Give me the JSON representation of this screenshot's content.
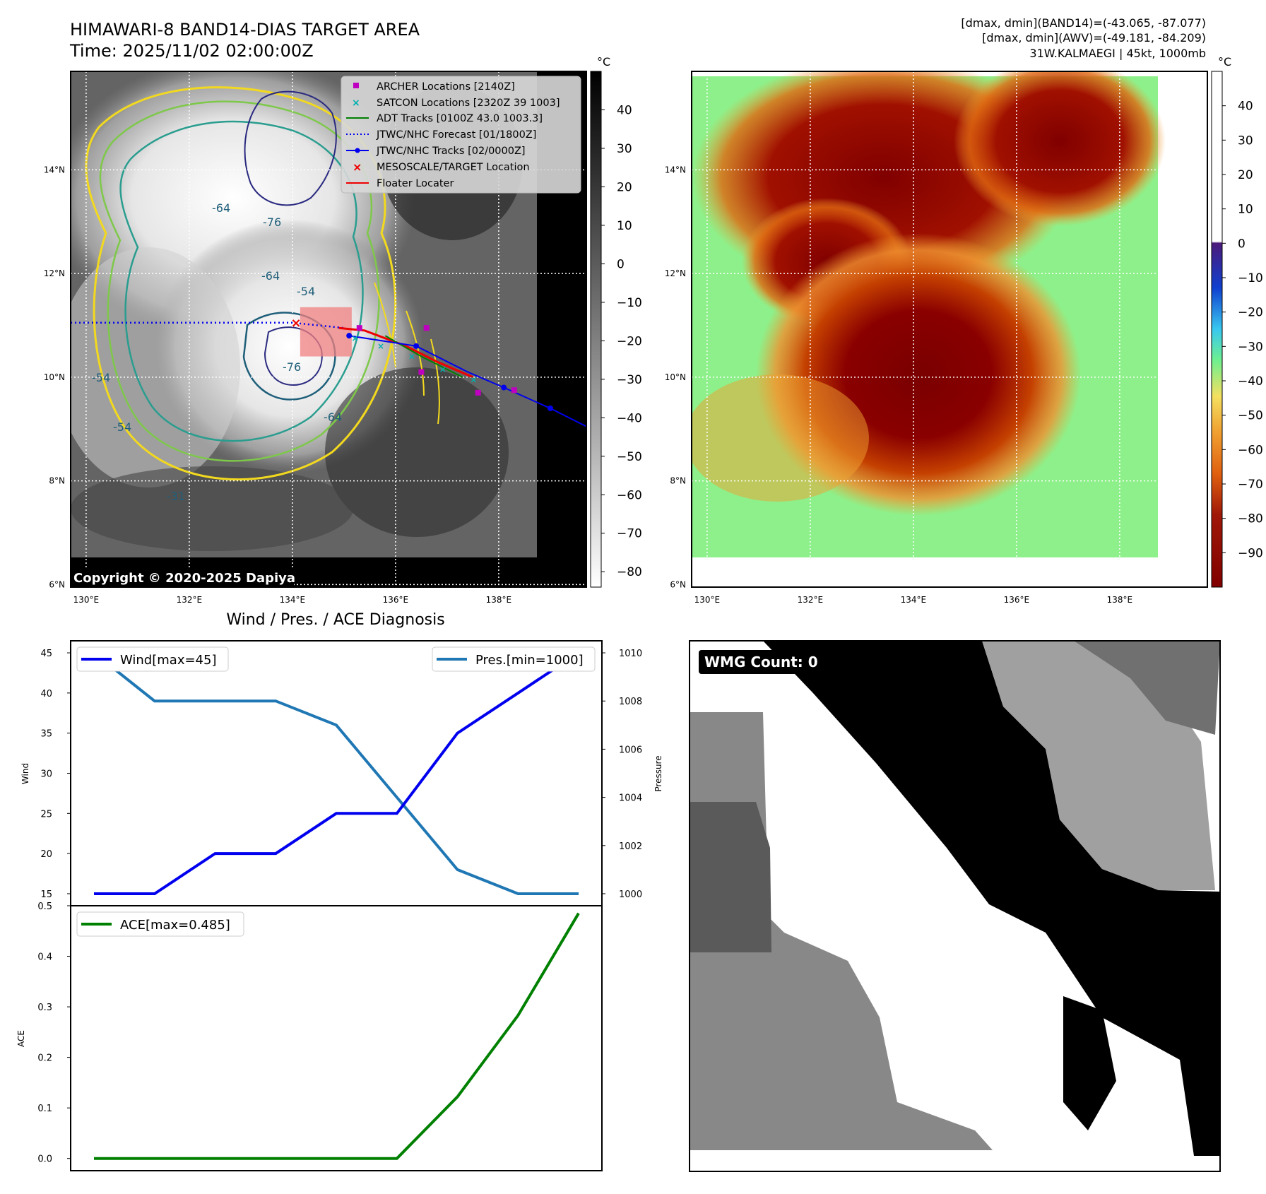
{
  "header": {
    "title_line1": "HIMAWARI-8 BAND14-DIAS TARGET AREA",
    "title_line2": "Time: 2025/11/02 02:00:00Z",
    "info_line1": "[dmax, dmin](BAND14)=(-43.065, -87.077)",
    "info_line2": "[dmax, dmin](AWV)=(-49.181, -84.209)",
    "info_line3": "31W.KALMAEGI | 45kt, 1000mb"
  },
  "maps": {
    "lat_labels": [
      "14°N",
      "12°N",
      "10°N",
      "8°N",
      "6°N"
    ],
    "lat_values": [
      14,
      12,
      10,
      8,
      6
    ],
    "lon_labels": [
      "130°E",
      "132°E",
      "134°E",
      "136°E",
      "138°E"
    ],
    "lon_values": [
      130,
      132,
      134,
      136,
      138
    ],
    "lat_range": [
      5.95,
      15.9
    ],
    "lon_range": [
      129.7,
      139.7
    ],
    "copyright": "Copyright © 2020-2025 Dapiya",
    "contour_labels": [
      "-64",
      "-76",
      "-54",
      "-64",
      "-76",
      "-64",
      "-54",
      "-54",
      "-31"
    ]
  },
  "colorbar_left": {
    "unit": "°C",
    "ticks": [
      "40",
      "30",
      "20",
      "10",
      "0",
      "−10",
      "−20",
      "−30",
      "−40",
      "−50",
      "−60",
      "−70",
      "−80"
    ],
    "tick_values": [
      40,
      30,
      20,
      10,
      0,
      -10,
      -20,
      -30,
      -40,
      -50,
      -60,
      -70,
      -80
    ],
    "range": [
      -84,
      50
    ]
  },
  "colorbar_right": {
    "unit": "°C",
    "ticks": [
      "40",
      "30",
      "20",
      "10",
      "0",
      "−10",
      "−20",
      "−30",
      "−40",
      "−50",
      "−60",
      "−70",
      "−80",
      "−90"
    ],
    "tick_values": [
      40,
      30,
      20,
      10,
      0,
      -10,
      -20,
      -30,
      -40,
      -50,
      -60,
      -70,
      -80,
      -90
    ],
    "range": [
      -100,
      50
    ]
  },
  "legend": {
    "items": [
      {
        "label": "ARCHER Locations [2140Z]",
        "color": "#c000c0",
        "marker": "square"
      },
      {
        "label": "SATCON Locations [2320Z 39 1003]",
        "color": "#00b0b0",
        "marker": "x"
      },
      {
        "label": "ADT Tracks [0100Z 43.0 1003.3]",
        "color": "#008000",
        "marker": "line"
      },
      {
        "label": "JTWC/NHC Forecast [01/1800Z]",
        "color": "#0000ee",
        "marker": "dotted"
      },
      {
        "label": "JTWC/NHC Tracks [02/0000Z]",
        "color": "#0000ee",
        "marker": "line-dot"
      },
      {
        "label": "MESOSCALE/TARGET Location",
        "color": "#ee0000",
        "marker": "x"
      },
      {
        "label": "Floater Locater",
        "color": "#ee0000",
        "marker": "line"
      }
    ]
  },
  "tracks": {
    "forecast": [
      [
        129.7,
        11.05
      ],
      [
        131,
        11.05
      ],
      [
        132.5,
        11.05
      ],
      [
        134,
        11.05
      ],
      [
        135,
        10.95
      ]
    ],
    "jtwc": [
      [
        135.1,
        10.8
      ],
      [
        136.4,
        10.6
      ],
      [
        137.4,
        10.1
      ],
      [
        138.1,
        9.8
      ],
      [
        139.0,
        9.4
      ],
      [
        139.7,
        9.05
      ]
    ],
    "jtwc_points": [
      [
        135.1,
        10.8
      ],
      [
        136.4,
        10.6
      ],
      [
        138.1,
        9.8
      ],
      [
        139.0,
        9.4
      ]
    ],
    "archer": [
      [
        135.3,
        10.95
      ],
      [
        136.6,
        10.95
      ],
      [
        136.5,
        10.1
      ],
      [
        137.6,
        9.7
      ],
      [
        138.3,
        9.75
      ]
    ],
    "floater": [
      [
        134.9,
        10.95
      ],
      [
        135.4,
        10.9
      ],
      [
        136.2,
        10.6
      ],
      [
        136.8,
        10.3
      ],
      [
        137.5,
        10.0
      ]
    ],
    "adt": [
      [
        135.8,
        10.8
      ],
      [
        136.5,
        10.4
      ],
      [
        137.3,
        10.0
      ]
    ],
    "satcon": [
      [
        135.2,
        10.75
      ],
      [
        135.7,
        10.6
      ],
      [
        136.3,
        10.4
      ],
      [
        136.9,
        10.15
      ],
      [
        137.5,
        9.95
      ]
    ],
    "target": [
      134.05,
      11.05
    ],
    "target_box": {
      "lon": [
        134.15,
        135.15
      ],
      "lat": [
        10.4,
        11.35
      ]
    }
  },
  "diag": {
    "title": "Wind / Pres. / ACE Diagnosis",
    "wind_label": "Wind",
    "pressure_label": "Pressure",
    "ace_label": "ACE",
    "wind_legend": "Wind[max=45]",
    "pres_legend": "Pres.[min=1000]",
    "ace_legend": "ACE[max=0.485]",
    "wind_ticks": [
      "45",
      "40",
      "35",
      "30",
      "25",
      "20",
      "15"
    ],
    "wind_tick_values": [
      45,
      40,
      35,
      30,
      25,
      20,
      15
    ],
    "wind_ylim": [
      13.5,
      46.5
    ],
    "pres_ticks": [
      "1010",
      "1008",
      "1006",
      "1004",
      "1002",
      "1000"
    ],
    "pres_tick_values": [
      1010,
      1008,
      1006,
      1004,
      1002,
      1000
    ],
    "pres_ylim": [
      999.5,
      1010.5
    ],
    "ace_ticks": [
      "0.5",
      "0.4",
      "0.3",
      "0.2",
      "0.1",
      "0.0"
    ],
    "ace_tick_values": [
      0.5,
      0.4,
      0.3,
      0.2,
      0.1,
      0.0
    ],
    "ace_ylim": [
      -0.0242,
      0.5
    ]
  },
  "wmg": {
    "label": "WMG Count: 0"
  },
  "chart_data": [
    {
      "type": "line",
      "title": "Wind / Pres. / ACE Diagnosis",
      "x": [
        0,
        1,
        2,
        3,
        4,
        5,
        6,
        7,
        8
      ],
      "series": [
        {
          "name": "Wind[max=45]",
          "axis": "left",
          "color": "#0000ee",
          "values": [
            15,
            15,
            20,
            20,
            25,
            25,
            35,
            40,
            45
          ]
        },
        {
          "name": "Pres.[min=1000]",
          "axis": "right",
          "color": "#1f77b4",
          "values": [
            1010,
            1008,
            1008,
            1008,
            1007,
            1004,
            1001,
            1000,
            1000
          ]
        }
      ],
      "ylabel": "Wind",
      "y2label": "Pressure",
      "ylim": [
        13.5,
        46.5
      ],
      "y2lim": [
        999.5,
        1010.5
      ]
    },
    {
      "type": "line",
      "title": "",
      "x": [
        0,
        1,
        2,
        3,
        4,
        5,
        6,
        7,
        8
      ],
      "series": [
        {
          "name": "ACE[max=0.485]",
          "color": "#008000",
          "values": [
            0,
            0,
            0,
            0,
            0,
            0,
            0.122,
            0.283,
            0.485
          ]
        }
      ],
      "ylabel": "ACE",
      "ylim": [
        -0.0242,
        0.5
      ]
    }
  ]
}
